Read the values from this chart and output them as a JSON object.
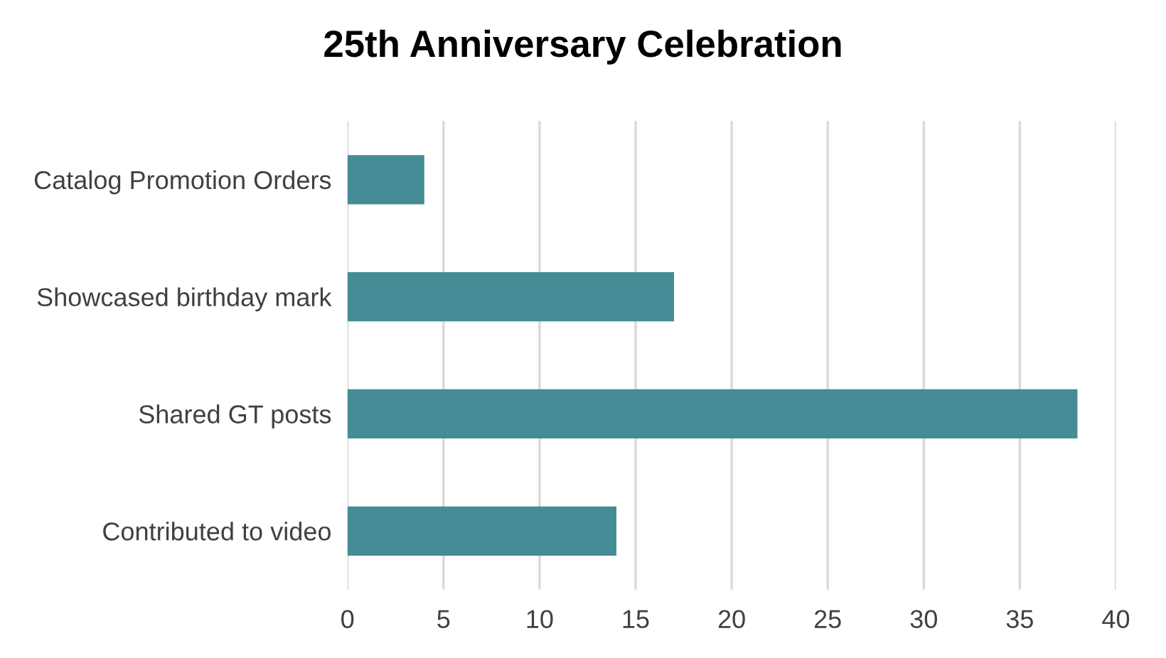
{
  "chart_data": {
    "type": "bar",
    "orientation": "horizontal",
    "title": "25th Anniversary Celebration",
    "categories": [
      "Catalog Promotion Orders",
      "Showcased birthday mark",
      "Shared GT posts",
      "Contributed to video"
    ],
    "values": [
      4,
      17,
      38,
      14
    ],
    "color": "#468c96",
    "xlim": [
      0,
      40
    ],
    "xticks": [
      0,
      5,
      10,
      15,
      20,
      25,
      30,
      35,
      40
    ],
    "grid": "x",
    "legend": false
  }
}
